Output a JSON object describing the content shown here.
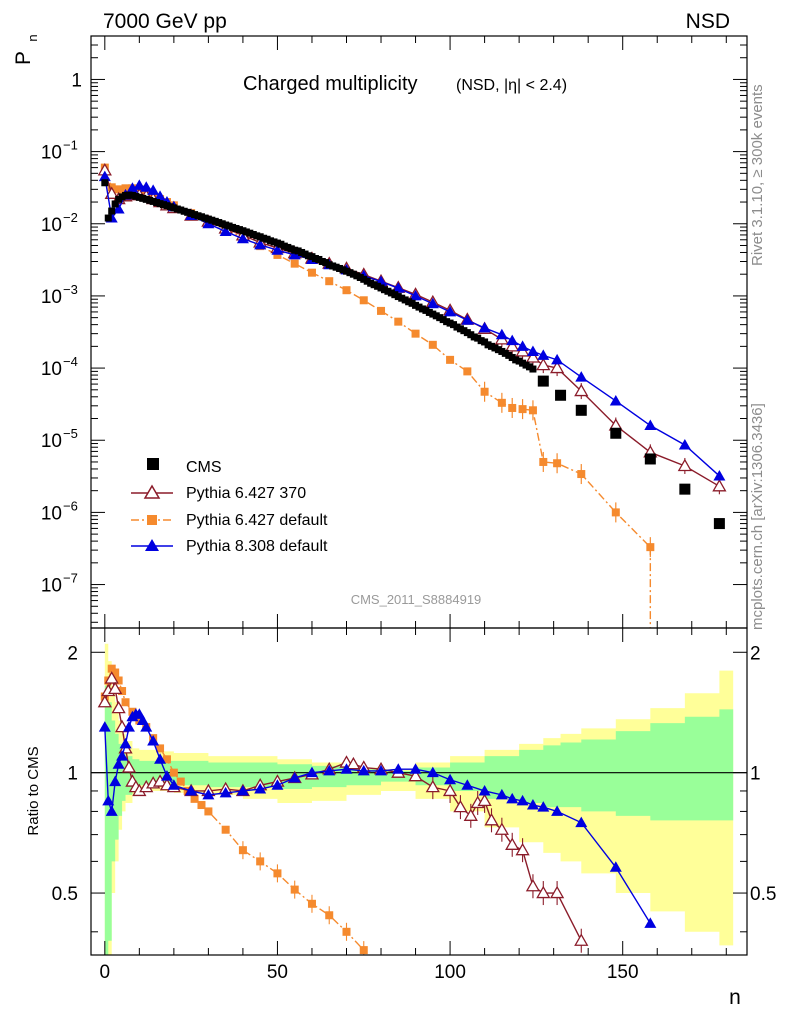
{
  "header": {
    "energy_label": "7000 GeV pp",
    "process_label": "NSD"
  },
  "side_labels": {
    "rivet": "Rivet 3.1.10, ≥ 300k events",
    "source": "mcplots.cern.ch [arXiv:1306.3436]"
  },
  "chart_data": [
    {
      "type": "scatter",
      "panel": "main",
      "title_main": "Charged multiplicity",
      "title_sub": "(NSD, |η| < 2.4)",
      "watermark": "CMS_2011_S8884919",
      "ylabel": "P",
      "ylabel_sub": "n",
      "xlabel": "n",
      "xlim": [
        -4,
        186
      ],
      "ylim": [
        2.5e-08,
        4.0
      ],
      "yscale": "log",
      "yticks": [
        {
          "v": 1e-07,
          "base": "10",
          "exp": "−7"
        },
        {
          "v": 1e-06,
          "base": "10",
          "exp": "−6"
        },
        {
          "v": 1e-05,
          "base": "10",
          "exp": "−5"
        },
        {
          "v": 0.0001,
          "base": "10",
          "exp": "−4"
        },
        {
          "v": 0.001,
          "base": "10",
          "exp": "−3"
        },
        {
          "v": 0.01,
          "base": "10",
          "exp": "−2"
        },
        {
          "v": 0.1,
          "base": "10",
          "exp": "−1"
        },
        {
          "v": 1,
          "base": "1",
          "exp": ""
        }
      ],
      "legend_position": "bottom-left",
      "series": [
        {
          "name": "CMS",
          "style": "data",
          "color": "#000000",
          "x": [
            0,
            1,
            2,
            3,
            4,
            5,
            6,
            7,
            8,
            9,
            10,
            11,
            12,
            13,
            14,
            15,
            16,
            17,
            18,
            19,
            20,
            21,
            22,
            23,
            24,
            25,
            26,
            27,
            28,
            29,
            30,
            31,
            32,
            33,
            34,
            35,
            36,
            37,
            38,
            39,
            40,
            41,
            42,
            43,
            44,
            45,
            46,
            47,
            48,
            49,
            50,
            51,
            52,
            53,
            54,
            55,
            56,
            57,
            58,
            59,
            60,
            61,
            62,
            63,
            64,
            65,
            66,
            67,
            68,
            69,
            70,
            71,
            72,
            73,
            74,
            75,
            76,
            77,
            78,
            79,
            80,
            81,
            82,
            83,
            84,
            85,
            86,
            87,
            88,
            89,
            90,
            91,
            92,
            93,
            94,
            95,
            96,
            97,
            98,
            99,
            100,
            101,
            102,
            103,
            104,
            105,
            106,
            107,
            108,
            109,
            110,
            111,
            112,
            113,
            114,
            115,
            116,
            117,
            118,
            119,
            120,
            121,
            122,
            123,
            124,
            127,
            132,
            138,
            148,
            158,
            168,
            178
          ],
          "y": [
            0.037,
            0.012,
            0.015,
            0.0188,
            0.0218,
            0.0236,
            0.0247,
            0.025,
            0.0247,
            0.024,
            0.0232,
            0.0225,
            0.0218,
            0.0211,
            0.0204,
            0.0197,
            0.019,
            0.0184,
            0.0178,
            0.0172,
            0.0166,
            0.016,
            0.0155,
            0.0149,
            0.0144,
            0.0139,
            0.0134,
            0.0129,
            0.0125,
            0.012,
            0.0116,
            0.0112,
            0.0108,
            0.0104,
            0.01,
            0.0096,
            0.0093,
            0.0089,
            0.0086,
            0.0083,
            0.008,
            0.0077,
            0.0074,
            0.0071,
            0.0068,
            0.0066,
            0.0063,
            0.0061,
            0.0058,
            0.0056,
            0.0054,
            0.0052,
            0.0049,
            0.0047,
            0.0045,
            0.0043,
            0.0042,
            0.004,
            0.0038,
            0.0036,
            0.0035,
            0.0033,
            0.0032,
            0.003,
            0.0029,
            0.0027,
            0.0026,
            0.0025,
            0.0024,
            0.0023,
            0.0022,
            0.0021,
            0.002,
            0.0019,
            0.0018,
            0.0017,
            0.0016,
            0.0015,
            0.00143,
            0.00136,
            0.00129,
            0.00122,
            0.00116,
            0.0011,
            0.00104,
            0.00098,
            0.00093,
            0.00088,
            0.00083,
            0.00079,
            0.00074,
            0.0007,
            0.00066,
            0.00063,
            0.00059,
            0.00056,
            0.00053,
            0.0005,
            0.00047,
            0.00044,
            0.00042,
            0.0004,
            0.00037,
            0.00035,
            0.00033,
            0.00031,
            0.00029,
            0.00027,
            0.00026,
            0.00024,
            0.00023,
            0.00021,
            0.0002,
            0.00019,
            0.00018,
            0.00017,
            0.00016,
            0.00015,
            0.00014,
            0.00013,
            0.000125,
            0.000117,
            0.00011,
            0.000104,
            9.7e-05,
            6.6e-05,
            4.2e-05,
            2.6e-05,
            1.25e-05,
            5.5e-06,
            2.1e-06,
            7e-07
          ],
          "y_display_note": "values read on log axis"
        },
        {
          "name": "Pythia 6.427 370",
          "style": "open-triangle-line",
          "color": "#8b1c2a",
          "x": [
            0,
            2,
            4,
            6,
            8,
            10,
            12,
            14,
            16,
            18,
            20,
            25,
            30,
            35,
            40,
            45,
            50,
            55,
            60,
            65,
            70,
            75,
            80,
            85,
            90,
            95,
            100,
            105,
            110,
            115,
            118,
            121,
            124,
            127,
            131,
            138,
            148,
            158,
            168,
            178
          ],
          "y": [
            0.055,
            0.026,
            0.022,
            0.024,
            0.025,
            0.025,
            0.024,
            0.022,
            0.02,
            0.018,
            0.0165,
            0.013,
            0.0107,
            0.0086,
            0.0069,
            0.0055,
            0.0046,
            0.0039,
            0.0033,
            0.0028,
            0.0024,
            0.00198,
            0.0016,
            0.0013,
            0.00105,
            0.00082,
            0.00063,
            0.00047,
            0.00035,
            0.00025,
            0.0002,
            0.00017,
            0.00014,
            0.00011,
            0.0001,
            4.8e-05,
            1.6e-05,
            6.8e-06,
            4.4e-06,
            2.3e-06
          ]
        },
        {
          "name": "Pythia 6.427 default",
          "style": "square-dashdot",
          "color": "#f58a2e",
          "x": [
            0,
            2,
            4,
            6,
            8,
            10,
            12,
            14,
            16,
            18,
            20,
            25,
            30,
            35,
            40,
            45,
            50,
            55,
            60,
            65,
            70,
            75,
            80,
            85,
            90,
            95,
            100,
            105,
            110,
            115,
            118,
            121,
            124,
            127,
            131,
            138,
            148,
            158
          ],
          "y": [
            0.06,
            0.032,
            0.03,
            0.031,
            0.031,
            0.03,
            0.028,
            0.025,
            0.022,
            0.02,
            0.018,
            0.014,
            0.0108,
            0.0084,
            0.0064,
            0.0049,
            0.0037,
            0.0028,
            0.0021,
            0.0016,
            0.0012,
            0.00087,
            0.00062,
            0.00044,
            0.0003,
            0.00021,
            0.00013,
            9e-05,
            4.7e-05,
            3.3e-05,
            2.8e-05,
            2.7e-05,
            2.6e-05,
            5e-06,
            4.8e-06,
            3.4e-06,
            1e-06,
            3.3e-07
          ]
        },
        {
          "name": "Pythia 8.308 default",
          "style": "filled-triangle-line",
          "color": "#0000e0",
          "x": [
            0,
            2,
            4,
            6,
            8,
            10,
            12,
            14,
            16,
            18,
            20,
            25,
            30,
            35,
            40,
            45,
            50,
            55,
            60,
            65,
            70,
            75,
            80,
            85,
            90,
            95,
            100,
            105,
            110,
            115,
            118,
            121,
            124,
            127,
            131,
            138,
            148,
            158,
            168,
            178
          ],
          "y": [
            0.045,
            0.012,
            0.016,
            0.025,
            0.031,
            0.034,
            0.032,
            0.029,
            0.024,
            0.02,
            0.0172,
            0.013,
            0.01,
            0.0078,
            0.0062,
            0.0051,
            0.0043,
            0.0037,
            0.0032,
            0.0027,
            0.0023,
            0.0019,
            0.00158,
            0.00128,
            0.001,
            0.00078,
            0.0006,
            0.00046,
            0.00036,
            0.00029,
            0.00024,
            0.0002,
            0.00017,
            0.00015,
            0.00013,
            7.5e-05,
            3.5e-05,
            1.6e-05,
            8.6e-06,
            3.2e-06
          ]
        }
      ]
    },
    {
      "type": "line",
      "panel": "ratio",
      "ylabel": "Ratio to CMS",
      "xlabel": "n",
      "xlim": [
        -4,
        186
      ],
      "ylim": [
        0.35,
        2.3
      ],
      "yscale": "log",
      "yticks": [
        {
          "v": 0.5,
          "label": "0.5"
        },
        {
          "v": 1,
          "label": "1"
        },
        {
          "v": 2,
          "label": "2"
        }
      ],
      "xticks": [
        0,
        50,
        100,
        150
      ],
      "bands": {
        "x": [
          0,
          1,
          2,
          3,
          4,
          5,
          6,
          8,
          10,
          12,
          15,
          20,
          30,
          40,
          50,
          60,
          70,
          80,
          90,
          100,
          110,
          120,
          127,
          132,
          138,
          148,
          158,
          168,
          178,
          182
        ],
        "yellow_lo": [
          0.35,
          0.35,
          0.5,
          0.6,
          0.72,
          0.8,
          0.84,
          0.88,
          0.9,
          0.9,
          0.9,
          0.89,
          0.88,
          0.86,
          0.84,
          0.85,
          0.88,
          0.9,
          0.86,
          0.8,
          0.73,
          0.67,
          0.63,
          0.6,
          0.56,
          0.5,
          0.45,
          0.4,
          0.37,
          0.37
        ],
        "yellow_hi": [
          2.1,
          1.9,
          1.65,
          1.5,
          1.35,
          1.25,
          1.2,
          1.15,
          1.14,
          1.14,
          1.13,
          1.12,
          1.1,
          1.1,
          1.08,
          1.06,
          1.03,
          1.02,
          1.06,
          1.1,
          1.14,
          1.18,
          1.22,
          1.25,
          1.29,
          1.36,
          1.45,
          1.58,
          1.8,
          1.8
        ],
        "green_lo": [
          0.35,
          0.38,
          0.6,
          0.68,
          0.78,
          0.85,
          0.88,
          0.92,
          0.93,
          0.93,
          0.93,
          0.93,
          0.92,
          0.92,
          0.91,
          0.92,
          0.93,
          0.95,
          0.93,
          0.9,
          0.86,
          0.84,
          0.82,
          0.82,
          0.8,
          0.78,
          0.76,
          0.76,
          0.76,
          0.76
        ],
        "green_hi": [
          1.65,
          1.5,
          1.35,
          1.25,
          1.18,
          1.12,
          1.1,
          1.08,
          1.07,
          1.07,
          1.07,
          1.07,
          1.06,
          1.06,
          1.05,
          1.04,
          1.02,
          1.01,
          1.03,
          1.06,
          1.1,
          1.14,
          1.17,
          1.19,
          1.21,
          1.27,
          1.33,
          1.38,
          1.44,
          1.44
        ],
        "yellow_color": "#ffff99",
        "green_color": "#99ff99"
      },
      "series": [
        {
          "name": "Pythia 6.427 370",
          "color": "#8b1c2a",
          "x": [
            0,
            1,
            2,
            3,
            4,
            5,
            6,
            7,
            8,
            9,
            10,
            12,
            14,
            16,
            18,
            20,
            25,
            30,
            35,
            40,
            45,
            50,
            55,
            60,
            65,
            70,
            72,
            75,
            80,
            85,
            90,
            95,
            100,
            103,
            106,
            108,
            110,
            112,
            115,
            118,
            121,
            124,
            127,
            131,
            138
          ],
          "y": [
            1.5,
            1.6,
            1.72,
            1.62,
            1.45,
            1.3,
            1.15,
            1.03,
            0.95,
            0.92,
            0.9,
            0.92,
            0.94,
            0.95,
            0.93,
            0.92,
            0.9,
            0.9,
            0.91,
            0.9,
            0.93,
            0.95,
            0.97,
            0.99,
            1.02,
            1.06,
            1.05,
            1.03,
            1.02,
            1.0,
            0.98,
            0.92,
            0.9,
            0.82,
            0.78,
            0.84,
            0.85,
            0.76,
            0.72,
            0.66,
            0.64,
            0.52,
            0.5,
            0.5,
            0.38
          ]
        },
        {
          "name": "Pythia 6.427 default",
          "color": "#f58a2e",
          "x": [
            0,
            1,
            2,
            3,
            4,
            5,
            6,
            8,
            10,
            12,
            14,
            16,
            18,
            20,
            22,
            24,
            26,
            28,
            30,
            35,
            40,
            45,
            50,
            55,
            60,
            65,
            70,
            75
          ],
          "y": [
            1.55,
            1.7,
            1.82,
            1.78,
            1.7,
            1.6,
            1.5,
            1.42,
            1.35,
            1.3,
            1.22,
            1.15,
            1.08,
            1.0,
            0.95,
            0.9,
            0.86,
            0.83,
            0.8,
            0.72,
            0.64,
            0.6,
            0.56,
            0.51,
            0.47,
            0.44,
            0.4,
            0.36
          ]
        },
        {
          "name": "Pythia 8.308 default",
          "color": "#0000e0",
          "x": [
            0,
            1,
            2,
            3,
            4,
            5,
            6,
            7,
            8,
            9,
            10,
            11,
            12,
            14,
            16,
            18,
            20,
            25,
            30,
            35,
            40,
            45,
            50,
            55,
            60,
            65,
            70,
            75,
            80,
            85,
            90,
            95,
            100,
            105,
            110,
            115,
            118,
            121,
            124,
            127,
            131,
            138,
            148,
            158
          ],
          "y": [
            1.3,
            0.85,
            0.8,
            0.95,
            1.05,
            1.1,
            1.18,
            1.3,
            1.38,
            1.4,
            1.4,
            1.35,
            1.3,
            1.2,
            1.08,
            0.98,
            0.93,
            0.9,
            0.88,
            0.89,
            0.9,
            0.91,
            0.93,
            0.97,
            1.0,
            1.01,
            1.02,
            1.01,
            1.01,
            1.02,
            1.02,
            1.0,
            0.96,
            0.93,
            0.9,
            0.88,
            0.86,
            0.85,
            0.83,
            0.82,
            0.8,
            0.75,
            0.58,
            0.42
          ]
        }
      ]
    }
  ]
}
